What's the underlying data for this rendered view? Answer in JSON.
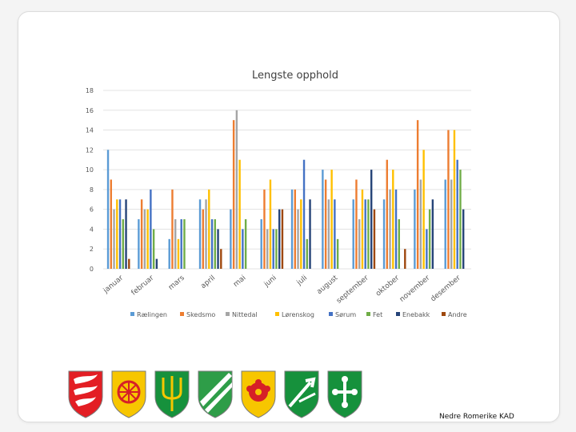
{
  "chart_data": {
    "type": "bar",
    "title": "Lengste opphold",
    "xlabel": "",
    "ylabel": "",
    "ylim": [
      0,
      18
    ],
    "yticks": [
      0,
      2,
      4,
      6,
      8,
      10,
      12,
      14,
      16,
      18
    ],
    "grid": true,
    "legend_position": "bottom",
    "categories": [
      "januar",
      "februar",
      "mars",
      "april",
      "mai",
      "juni",
      "juli",
      "august",
      "september",
      "oktober",
      "november",
      "desember"
    ],
    "series": [
      {
        "name": "Rælingen",
        "color": "#5b9bd5",
        "values": [
          12,
          5,
          3,
          7,
          6,
          5,
          8,
          10,
          7,
          7,
          8,
          9
        ]
      },
      {
        "name": "Skedsmo",
        "color": "#ed7d31",
        "values": [
          9,
          7,
          8,
          6,
          15,
          8,
          8,
          9,
          9,
          11,
          15,
          14
        ]
      },
      {
        "name": "Nittedal",
        "color": "#a5a5a5",
        "values": [
          6,
          6,
          5,
          7,
          16,
          4,
          6,
          7,
          5,
          8,
          9,
          9
        ]
      },
      {
        "name": "Lørenskog",
        "color": "#ffc000",
        "values": [
          7,
          6,
          3,
          8,
          11,
          9,
          7,
          10,
          8,
          10,
          12,
          14
        ]
      },
      {
        "name": "Sørum",
        "color": "#4472c4",
        "values": [
          7,
          8,
          5,
          5,
          4,
          4,
          11,
          7,
          7,
          8,
          4,
          11
        ]
      },
      {
        "name": "Fet",
        "color": "#70ad47",
        "values": [
          5,
          4,
          5,
          5,
          5,
          4,
          3,
          3,
          7,
          5,
          6,
          10
        ]
      },
      {
        "name": "Enebakk",
        "color": "#264478",
        "values": [
          7,
          1,
          0,
          4,
          0,
          6,
          7,
          0,
          10,
          0,
          7,
          6
        ]
      },
      {
        "name": "Andre",
        "color": "#9e480e",
        "values": [
          1,
          0,
          0,
          2,
          0,
          6,
          0,
          0,
          6,
          2,
          0,
          0
        ]
      }
    ]
  },
  "crests": [
    {
      "icon": "feathers-crest-icon",
      "bg": "#e31e24",
      "fg": "#ffffff"
    },
    {
      "icon": "wheel-crest-icon",
      "bg": "#f7c600",
      "fg": "#d62027"
    },
    {
      "icon": "trident-crest-icon",
      "bg": "#16913c",
      "fg": "#f7c600"
    },
    {
      "icon": "diagonal-stripes-crest-icon",
      "bg": "#2e9d48",
      "fg": "#ffffff"
    },
    {
      "icon": "rose-crest-icon",
      "bg": "#f7c600",
      "fg": "#d62027"
    },
    {
      "icon": "arrow-crest-icon",
      "bg": "#16913c",
      "fg": "#ffffff"
    },
    {
      "icon": "clover-cross-crest-icon",
      "bg": "#16913c",
      "fg": "#ffffff"
    }
  ],
  "footer": {
    "text": "Nedre Romerike KAD"
  }
}
